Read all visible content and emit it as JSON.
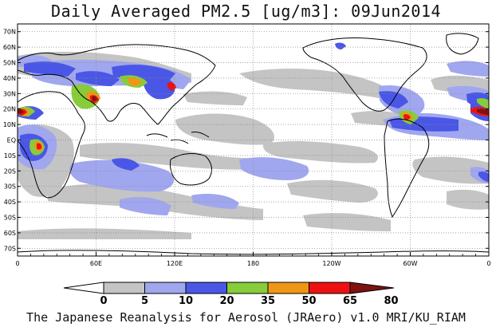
{
  "title": "Daily Averaged PM2.5 [ug/m3]: 09Jun2014",
  "footer": "The Japanese Reanalysis for Aerosol (JRAero) v1.0 MRI/KU_RIAM",
  "map": {
    "lat_ticks": [
      "70N",
      "60N",
      "50N",
      "40N",
      "30N",
      "20N",
      "10N",
      "EQ",
      "10S",
      "20S",
      "30S",
      "40S",
      "50S",
      "60S",
      "70S"
    ],
    "lon_ticks": [
      "0",
      "60E",
      "120E",
      "180",
      "120W",
      "60W",
      "0"
    ],
    "grid": true,
    "projection": "cylindrical 0-360E, 75S-75N"
  },
  "colorbar": {
    "labels": [
      "0",
      "5",
      "10",
      "20",
      "35",
      "50",
      "65",
      "80"
    ],
    "colors": [
      "#ffffff",
      "#c4c4c4",
      "#a0a7ee",
      "#4a57e6",
      "#87cc3a",
      "#ef9715",
      "#ee1111",
      "#7e1212"
    ]
  }
}
